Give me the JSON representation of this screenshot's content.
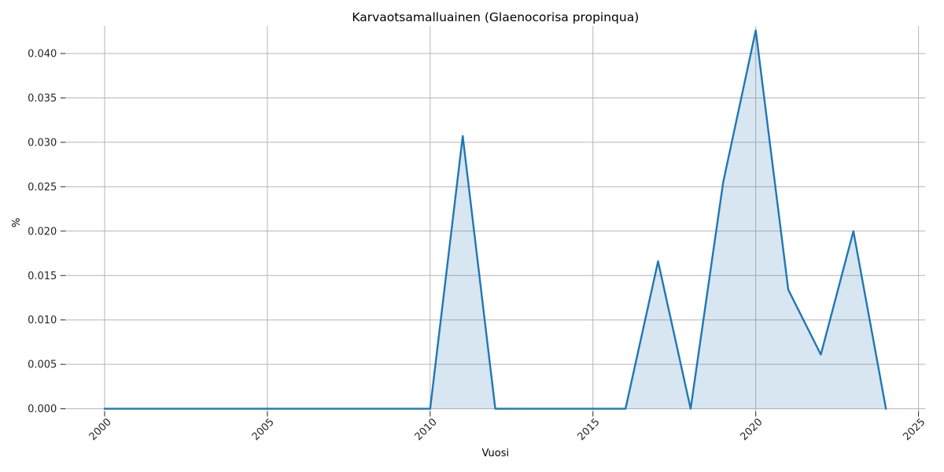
{
  "chart_data": {
    "type": "area",
    "title": "Karvaotsamalluainen (Glaenocorisa propinqua)",
    "xlabel": "Vuosi",
    "ylabel": "%",
    "x": [
      2000,
      2001,
      2002,
      2003,
      2004,
      2005,
      2006,
      2007,
      2008,
      2009,
      2010,
      2011,
      2012,
      2013,
      2014,
      2015,
      2016,
      2017,
      2018,
      2019,
      2020,
      2021,
      2022,
      2023,
      2024
    ],
    "values": [
      0,
      0,
      0,
      0,
      0,
      0,
      0,
      0,
      0,
      0,
      0,
      0.0307,
      0,
      0,
      0,
      0,
      0,
      0.0166,
      0,
      0.0255,
      0.0426,
      0.0134,
      0.0061,
      0.02,
      0
    ],
    "xlim": [
      1998.8,
      2025.21
    ],
    "ylim": [
      -0.0003,
      0.0431
    ],
    "xticks": {
      "values": [
        2000,
        2005,
        2010,
        2015,
        2020,
        2025
      ],
      "labels": [
        "2000",
        "2005",
        "2010",
        "2015",
        "2020",
        "2025"
      ]
    },
    "yticks": {
      "values": [
        0.0,
        0.005,
        0.01,
        0.015,
        0.02,
        0.025,
        0.03,
        0.035,
        0.04
      ],
      "labels": [
        "0.000",
        "0.005",
        "0.010",
        "0.015",
        "0.020",
        "0.025",
        "0.030",
        "0.035",
        "0.040"
      ]
    },
    "grid": true,
    "legend": "none",
    "line_color": "#1f77b4",
    "fill_color": "#1f77b4",
    "fill_opacity": 0.18,
    "grid_color": "#b6b6b6",
    "tick_color": "#262626"
  }
}
